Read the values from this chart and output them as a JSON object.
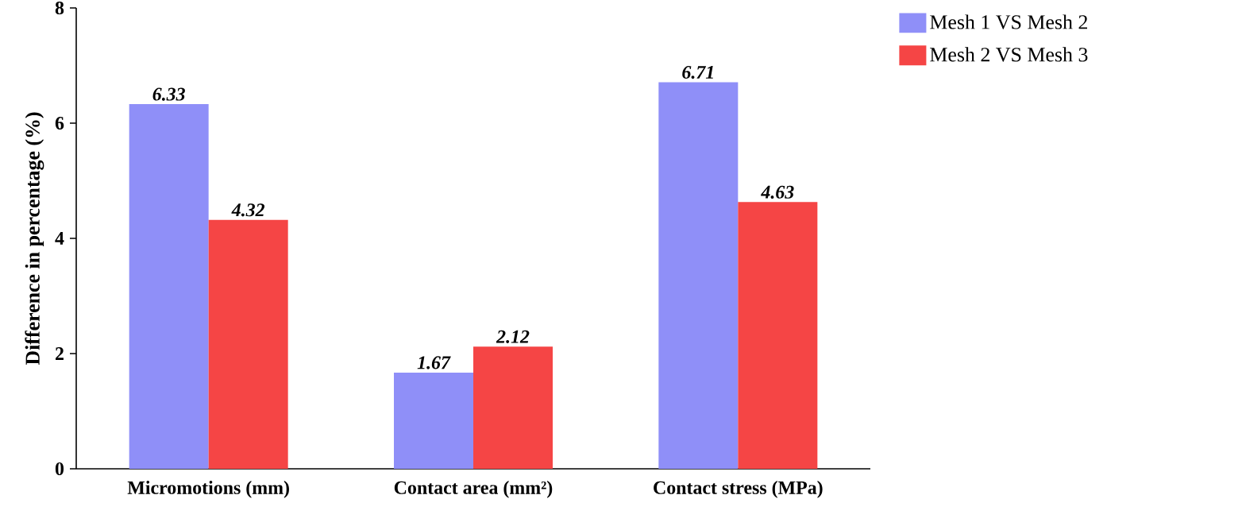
{
  "chart_data": {
    "type": "bar",
    "ylabel": "Difference in percentage (%)",
    "categories": [
      "Micromotions (mm)",
      "Contact area (mm²)",
      "Contact stress (MPa)"
    ],
    "series": [
      {
        "name": "Mesh 1 VS Mesh 2",
        "color": "#8f8ff8",
        "values": [
          6.33,
          1.67,
          6.71
        ]
      },
      {
        "name": "Mesh 2 VS Mesh 3",
        "color": "#f54545",
        "values": [
          4.32,
          2.12,
          4.63
        ]
      }
    ],
    "ylim": [
      0,
      8
    ],
    "yticks": [
      0,
      2,
      4,
      6,
      8
    ],
    "data_labels": true,
    "legend": "top right",
    "grid": false
  }
}
